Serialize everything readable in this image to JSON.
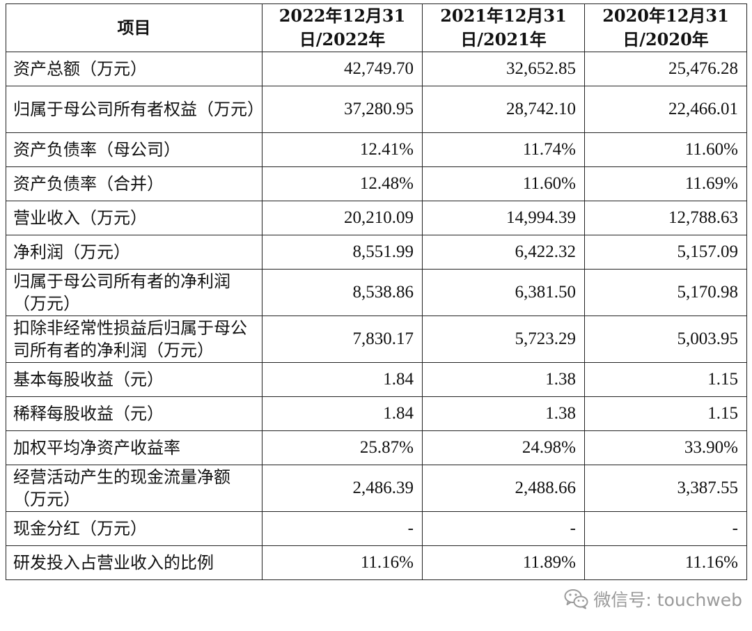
{
  "table": {
    "headers": [
      "项目",
      "2022年12月31日/2022年",
      "2021年12月31日/2021年",
      "2020年12月31日/2020年"
    ],
    "rows": [
      {
        "label": "资产总额（万元）",
        "values": [
          "42,749.70",
          "32,652.85",
          "25,476.28"
        ]
      },
      {
        "label": "归属于母公司所有者权益（万元）",
        "values": [
          "37,280.95",
          "28,742.10",
          "22,466.01"
        ]
      },
      {
        "label": "资产负债率（母公司）",
        "values": [
          "12.41%",
          "11.74%",
          "11.60%"
        ]
      },
      {
        "label": "资产负债率（合并）",
        "values": [
          "12.48%",
          "11.60%",
          "11.69%"
        ]
      },
      {
        "label": "营业收入（万元）",
        "values": [
          "20,210.09",
          "14,994.39",
          "12,788.63"
        ]
      },
      {
        "label": "净利润（万元）",
        "values": [
          "8,551.99",
          "6,422.32",
          "5,157.09"
        ]
      },
      {
        "label": "归属于母公司所有者的净利润（万元）",
        "values": [
          "8,538.86",
          "6,381.50",
          "5,170.98"
        ]
      },
      {
        "label": "扣除非经常性损益后归属于母公司所有者的净利润（万元）",
        "values": [
          "7,830.17",
          "5,723.29",
          "5,003.95"
        ]
      },
      {
        "label": "基本每股收益（元）",
        "values": [
          "1.84",
          "1.38",
          "1.15"
        ]
      },
      {
        "label": "稀释每股收益（元）",
        "values": [
          "1.84",
          "1.38",
          "1.15"
        ]
      },
      {
        "label": "加权平均净资产收益率",
        "values": [
          "25.87%",
          "24.98%",
          "33.90%"
        ]
      },
      {
        "label": "经营活动产生的现金流量净额（万元）",
        "values": [
          "2,486.39",
          "2,488.66",
          "3,387.55"
        ]
      },
      {
        "label": "现金分红（万元）",
        "values": [
          "-",
          "-",
          "-"
        ]
      },
      {
        "label": "研发投入占营业收入的比例",
        "values": [
          "11.16%",
          "11.89%",
          "11.16%"
        ]
      }
    ]
  },
  "watermark": {
    "text": "微信号: touchweb",
    "icon": "wechat-icon"
  }
}
